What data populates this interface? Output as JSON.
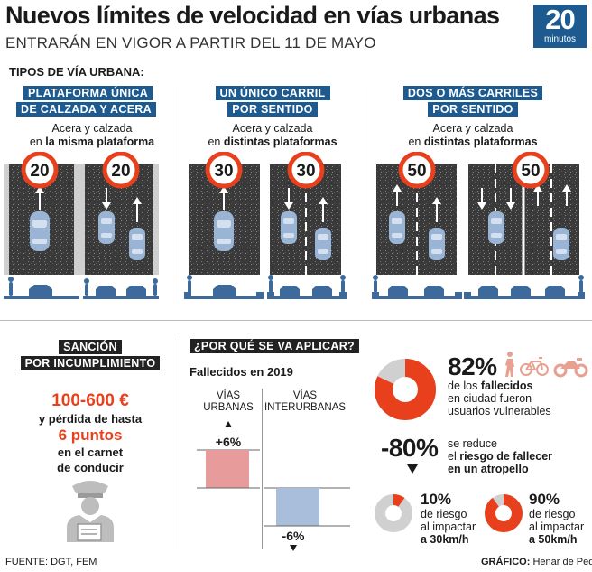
{
  "header": {
    "title": "Nuevos límites de velocidad en vías urbanas",
    "subtitle": "ENTRARÁN EN VIGOR A PARTIR DEL 11 DE MAYO",
    "logo_number": "20",
    "logo_word": "minutos"
  },
  "types_section": {
    "title": "TIPOS DE VÍA URBANA:",
    "columns": [
      {
        "tag_line1": "PLATAFORMA ÚNICA",
        "tag_line2": "DE CALZADA Y ACERA",
        "desc_line1": "Acera y calzada",
        "desc_pre": "en ",
        "desc_bold": "la misma plataforma",
        "limits": [
          "20",
          "20"
        ]
      },
      {
        "tag_line1": "UN ÚNICO CARRIL",
        "tag_line2": "POR SENTIDO",
        "desc_line1": "Acera y calzada",
        "desc_pre": "en ",
        "desc_bold": "distintas plataformas",
        "limits": [
          "30",
          "30"
        ]
      },
      {
        "tag_line1": "DOS O MÁS CARRILES",
        "tag_line2": "POR SENTIDO",
        "desc_line1": "Acera y calzada",
        "desc_pre": "en ",
        "desc_bold": "distintas plataformas",
        "limits": [
          "50",
          "50"
        ]
      }
    ]
  },
  "sanction": {
    "tag_line1": "SANCIÓN",
    "tag_line2": "POR INCUMPLIMIENTO",
    "amount": "100-600 €",
    "line2": "y pérdida de hasta",
    "points": "6 puntos",
    "line4": "en el carnet",
    "line5": "de conducir"
  },
  "why": {
    "tag": "¿POR QUÉ SE VA APLICAR?",
    "deaths_title": "Fallecidos en 2019",
    "urban_label_1": "VÍAS",
    "urban_label_2": "URBANAS",
    "inter_label_1": "VÍAS",
    "inter_label_2": "INTERURBANAS",
    "urban_change": "+6%",
    "inter_change": "-6%"
  },
  "stats": {
    "vulnerable_pct": "82%",
    "vulnerable_line1_pre": "de los ",
    "vulnerable_line1_bold": "fallecidos",
    "vulnerable_line2": "en ciudad fueron",
    "vulnerable_line3": "usuarios vulnerables",
    "vulnerable_fraction": 0.82,
    "reduce_pct": "-80%",
    "reduce_line1": "se reduce",
    "reduce_line2_pre": "el ",
    "reduce_line2_bold": "riesgo de fallecer",
    "reduce_line3": "en un atropello",
    "risk30_pct": "10%",
    "risk30_l1": "de riesgo",
    "risk30_l2": "al impactar",
    "risk30_l3": "a 30km/h",
    "risk30_fraction": 0.1,
    "risk50_pct": "90%",
    "risk50_l1": "de riesgo",
    "risk50_l2": "al impactar",
    "risk50_l3": "a 50km/h",
    "risk50_fraction": 0.9
  },
  "footer": {
    "source": "FUENTE: DGT, FEM",
    "credit_label": "GRÁFICO:",
    "credit_name": "Henar de Pedro"
  },
  "colors": {
    "accent_blue": "#1c5a8f",
    "alert_red": "#e8401c",
    "urban_bar": "#e89b9b",
    "inter_bar": "#a8bedb",
    "car": "#9ab4d6"
  }
}
